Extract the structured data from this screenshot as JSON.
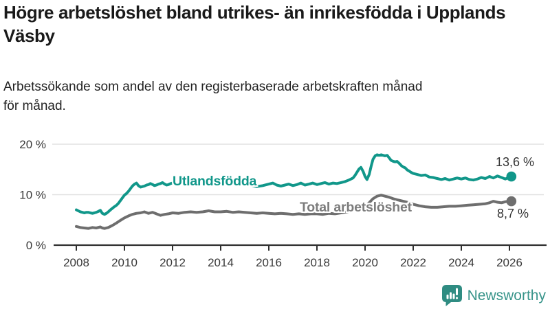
{
  "chart_data": {
    "type": "line",
    "title": "Högre arbetslöshet bland utrikes- än inrikesfödda i Upplands Väsby",
    "subtitle_line1": "Arbetssökande som andel av den registerbaserade arbetskraften månad",
    "subtitle_line2": "för månad.",
    "xlabel": "",
    "ylabel": "",
    "xlim": [
      2007.85,
      2026.6
    ],
    "ylim": [
      0,
      21
    ],
    "grid": "horizontal",
    "legend_position": "inline-on-lines",
    "x_ticks": [
      2008,
      2010,
      2012,
      2014,
      2016,
      2018,
      2020,
      2022,
      2024,
      2026
    ],
    "x_tick_labels": [
      "2008",
      "2010",
      "2012",
      "2014",
      "2016",
      "2018",
      "2020",
      "2022",
      "2024",
      "2026"
    ],
    "y_ticks": [
      0,
      10,
      20
    ],
    "y_tick_labels": [
      "0 %",
      "10 %",
      "20 %"
    ],
    "series": [
      {
        "name": "Utlandsfödda",
        "color": "#11978a",
        "end_value": 13.6,
        "end_label": "13,6 %",
        "points": [
          [
            2008.0,
            7.0
          ],
          [
            2008.08,
            6.8
          ],
          [
            2008.17,
            6.6
          ],
          [
            2008.25,
            6.5
          ],
          [
            2008.33,
            6.4
          ],
          [
            2008.42,
            6.5
          ],
          [
            2008.5,
            6.5
          ],
          [
            2008.58,
            6.4
          ],
          [
            2008.67,
            6.3
          ],
          [
            2008.75,
            6.4
          ],
          [
            2008.83,
            6.5
          ],
          [
            2008.92,
            6.7
          ],
          [
            2009.0,
            6.9
          ],
          [
            2009.08,
            6.3
          ],
          [
            2009.17,
            6.1
          ],
          [
            2009.25,
            6.3
          ],
          [
            2009.33,
            6.6
          ],
          [
            2009.42,
            7.0
          ],
          [
            2009.5,
            7.3
          ],
          [
            2009.58,
            7.6
          ],
          [
            2009.67,
            7.9
          ],
          [
            2009.75,
            8.3
          ],
          [
            2009.83,
            8.8
          ],
          [
            2009.92,
            9.4
          ],
          [
            2010.0,
            9.9
          ],
          [
            2010.08,
            10.2
          ],
          [
            2010.17,
            10.7
          ],
          [
            2010.25,
            11.2
          ],
          [
            2010.33,
            11.7
          ],
          [
            2010.42,
            12.1
          ],
          [
            2010.5,
            12.3
          ],
          [
            2010.58,
            11.8
          ],
          [
            2010.67,
            11.5
          ],
          [
            2010.75,
            11.6
          ],
          [
            2010.83,
            11.7
          ],
          [
            2010.92,
            11.9
          ],
          [
            2011.0,
            12.0
          ],
          [
            2011.08,
            12.2
          ],
          [
            2011.17,
            12.0
          ],
          [
            2011.25,
            11.8
          ],
          [
            2011.33,
            11.9
          ],
          [
            2011.42,
            12.1
          ],
          [
            2011.5,
            12.2
          ],
          [
            2011.58,
            12.4
          ],
          [
            2011.67,
            12.1
          ],
          [
            2011.75,
            11.9
          ],
          [
            2011.83,
            12.0
          ],
          [
            2011.92,
            12.2
          ],
          [
            2012.0,
            12.3
          ],
          [
            2012.17,
            12.1
          ],
          [
            2012.33,
            12.2
          ],
          [
            2012.5,
            12.4
          ],
          [
            2012.67,
            12.2
          ],
          [
            2012.83,
            12.3
          ],
          [
            2013.0,
            12.4
          ],
          [
            2013.25,
            12.3
          ],
          [
            2013.5,
            12.5
          ],
          [
            2013.75,
            12.3
          ],
          [
            2014.0,
            12.4
          ],
          [
            2014.25,
            12.2
          ],
          [
            2014.5,
            12.3
          ],
          [
            2014.75,
            12.1
          ],
          [
            2015.0,
            12.2
          ],
          [
            2015.25,
            11.9
          ],
          [
            2015.5,
            11.6
          ],
          [
            2015.75,
            11.8
          ],
          [
            2016.0,
            12.1
          ],
          [
            2016.17,
            12.3
          ],
          [
            2016.33,
            11.9
          ],
          [
            2016.5,
            11.7
          ],
          [
            2016.67,
            11.9
          ],
          [
            2016.83,
            12.1
          ],
          [
            2017.0,
            11.8
          ],
          [
            2017.17,
            12.0
          ],
          [
            2017.33,
            12.3
          ],
          [
            2017.5,
            11.9
          ],
          [
            2017.67,
            12.1
          ],
          [
            2017.83,
            12.3
          ],
          [
            2018.0,
            12.0
          ],
          [
            2018.17,
            12.2
          ],
          [
            2018.33,
            12.4
          ],
          [
            2018.5,
            12.1
          ],
          [
            2018.67,
            12.3
          ],
          [
            2018.83,
            12.2
          ],
          [
            2019.0,
            12.4
          ],
          [
            2019.17,
            12.6
          ],
          [
            2019.33,
            12.9
          ],
          [
            2019.5,
            13.3
          ],
          [
            2019.58,
            13.8
          ],
          [
            2019.67,
            14.5
          ],
          [
            2019.75,
            15.1
          ],
          [
            2019.83,
            15.4
          ],
          [
            2019.92,
            14.6
          ],
          [
            2020.0,
            13.6
          ],
          [
            2020.08,
            13.0
          ],
          [
            2020.17,
            14.0
          ],
          [
            2020.25,
            15.6
          ],
          [
            2020.33,
            17.0
          ],
          [
            2020.42,
            17.7
          ],
          [
            2020.5,
            17.9
          ],
          [
            2020.58,
            17.8
          ],
          [
            2020.67,
            17.9
          ],
          [
            2020.75,
            17.8
          ],
          [
            2020.83,
            17.7
          ],
          [
            2020.92,
            17.8
          ],
          [
            2021.0,
            17.3
          ],
          [
            2021.08,
            16.8
          ],
          [
            2021.17,
            16.6
          ],
          [
            2021.25,
            16.5
          ],
          [
            2021.33,
            16.6
          ],
          [
            2021.42,
            16.2
          ],
          [
            2021.5,
            15.8
          ],
          [
            2021.58,
            15.5
          ],
          [
            2021.67,
            15.3
          ],
          [
            2021.75,
            14.9
          ],
          [
            2021.83,
            14.7
          ],
          [
            2021.92,
            14.4
          ],
          [
            2022.0,
            14.2
          ],
          [
            2022.17,
            14.0
          ],
          [
            2022.33,
            13.8
          ],
          [
            2022.5,
            13.9
          ],
          [
            2022.67,
            13.5
          ],
          [
            2022.83,
            13.4
          ],
          [
            2023.0,
            13.2
          ],
          [
            2023.17,
            13.0
          ],
          [
            2023.33,
            13.2
          ],
          [
            2023.5,
            12.9
          ],
          [
            2023.67,
            13.1
          ],
          [
            2023.83,
            13.3
          ],
          [
            2024.0,
            13.1
          ],
          [
            2024.17,
            13.3
          ],
          [
            2024.33,
            13.0
          ],
          [
            2024.5,
            12.9
          ],
          [
            2024.67,
            13.1
          ],
          [
            2024.83,
            13.4
          ],
          [
            2025.0,
            13.2
          ],
          [
            2025.17,
            13.6
          ],
          [
            2025.33,
            13.3
          ],
          [
            2025.5,
            13.7
          ],
          [
            2025.67,
            13.4
          ],
          [
            2025.83,
            13.1
          ],
          [
            2025.92,
            13.3
          ],
          [
            2026.08,
            13.6
          ]
        ]
      },
      {
        "name": "Total arbetslöshet",
        "color": "#6e6e6e",
        "end_value": 8.7,
        "end_label": "8,7 %",
        "points": [
          [
            2008.0,
            3.7
          ],
          [
            2008.17,
            3.5
          ],
          [
            2008.33,
            3.4
          ],
          [
            2008.5,
            3.3
          ],
          [
            2008.67,
            3.5
          ],
          [
            2008.83,
            3.4
          ],
          [
            2009.0,
            3.6
          ],
          [
            2009.08,
            3.4
          ],
          [
            2009.17,
            3.3
          ],
          [
            2009.33,
            3.5
          ],
          [
            2009.5,
            3.9
          ],
          [
            2009.67,
            4.4
          ],
          [
            2009.83,
            4.9
          ],
          [
            2010.0,
            5.4
          ],
          [
            2010.17,
            5.8
          ],
          [
            2010.33,
            6.1
          ],
          [
            2010.5,
            6.3
          ],
          [
            2010.67,
            6.4
          ],
          [
            2010.83,
            6.6
          ],
          [
            2011.0,
            6.3
          ],
          [
            2011.17,
            6.5
          ],
          [
            2011.33,
            6.2
          ],
          [
            2011.5,
            5.9
          ],
          [
            2011.67,
            6.1
          ],
          [
            2011.83,
            6.2
          ],
          [
            2012.0,
            6.4
          ],
          [
            2012.25,
            6.3
          ],
          [
            2012.5,
            6.5
          ],
          [
            2012.75,
            6.6
          ],
          [
            2013.0,
            6.5
          ],
          [
            2013.25,
            6.6
          ],
          [
            2013.5,
            6.8
          ],
          [
            2013.75,
            6.6
          ],
          [
            2014.0,
            6.6
          ],
          [
            2014.25,
            6.7
          ],
          [
            2014.5,
            6.5
          ],
          [
            2014.75,
            6.6
          ],
          [
            2015.0,
            6.5
          ],
          [
            2015.25,
            6.4
          ],
          [
            2015.5,
            6.3
          ],
          [
            2015.75,
            6.4
          ],
          [
            2016.0,
            6.3
          ],
          [
            2016.25,
            6.2
          ],
          [
            2016.5,
            6.3
          ],
          [
            2016.75,
            6.2
          ],
          [
            2017.0,
            6.1
          ],
          [
            2017.25,
            6.2
          ],
          [
            2017.5,
            6.1
          ],
          [
            2017.75,
            6.2
          ],
          [
            2018.0,
            6.2
          ],
          [
            2018.25,
            6.1
          ],
          [
            2018.5,
            6.3
          ],
          [
            2018.75,
            6.2
          ],
          [
            2019.0,
            6.4
          ],
          [
            2019.25,
            6.6
          ],
          [
            2019.5,
            6.8
          ],
          [
            2019.75,
            7.2
          ],
          [
            2020.0,
            7.6
          ],
          [
            2020.17,
            8.4
          ],
          [
            2020.33,
            9.2
          ],
          [
            2020.5,
            9.7
          ],
          [
            2020.67,
            9.9
          ],
          [
            2020.83,
            9.7
          ],
          [
            2021.0,
            9.5
          ],
          [
            2021.17,
            9.2
          ],
          [
            2021.33,
            9.0
          ],
          [
            2021.5,
            8.8
          ],
          [
            2021.67,
            8.6
          ],
          [
            2021.83,
            8.4
          ],
          [
            2022.0,
            8.1
          ],
          [
            2022.25,
            7.8
          ],
          [
            2022.5,
            7.6
          ],
          [
            2022.75,
            7.5
          ],
          [
            2023.0,
            7.5
          ],
          [
            2023.25,
            7.6
          ],
          [
            2023.5,
            7.7
          ],
          [
            2023.75,
            7.7
          ],
          [
            2024.0,
            7.8
          ],
          [
            2024.25,
            7.9
          ],
          [
            2024.5,
            8.0
          ],
          [
            2024.75,
            8.1
          ],
          [
            2025.0,
            8.2
          ],
          [
            2025.17,
            8.4
          ],
          [
            2025.33,
            8.7
          ],
          [
            2025.5,
            8.5
          ],
          [
            2025.67,
            8.4
          ],
          [
            2025.83,
            8.6
          ],
          [
            2026.08,
            8.7
          ]
        ]
      }
    ]
  },
  "colors": {
    "teal": "#11978a",
    "gray": "#6e6e6e",
    "grid": "#e2e2e2",
    "axis": "#2f2f2f",
    "tick_text": "#383838",
    "brand": "#38948a"
  },
  "footer": {
    "brand": "Newsworthy"
  }
}
